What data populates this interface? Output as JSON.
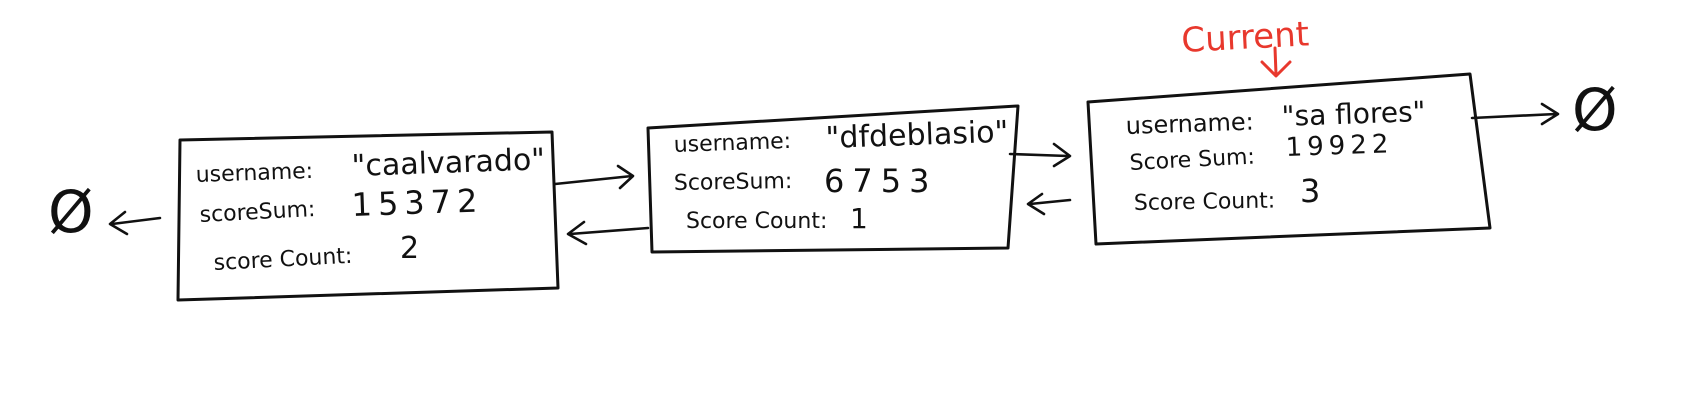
{
  "accent_color": "#e8382d",
  "ink_color": "#111111",
  "current_label": "Current",
  "null_symbol": "Ø",
  "nodes": [
    {
      "username_label": "username:",
      "username_value": "\"caalvarado\"",
      "score_sum_label": "scoreSum:",
      "score_sum_value": "15372",
      "score_count_label": "score Count:",
      "score_count_value": "2"
    },
    {
      "username_label": "username:",
      "username_value": "\"dfdeblasio\"",
      "score_sum_label": "ScoreSum:",
      "score_sum_value": "6753",
      "score_count_label": "Score Count:",
      "score_count_value": "1"
    },
    {
      "username_label": "username:",
      "username_value": "\"sa flores\"",
      "score_sum_label": "Score Sum:",
      "score_sum_value": "19922",
      "score_count_label": "Score Count:",
      "score_count_value": "3"
    }
  ]
}
